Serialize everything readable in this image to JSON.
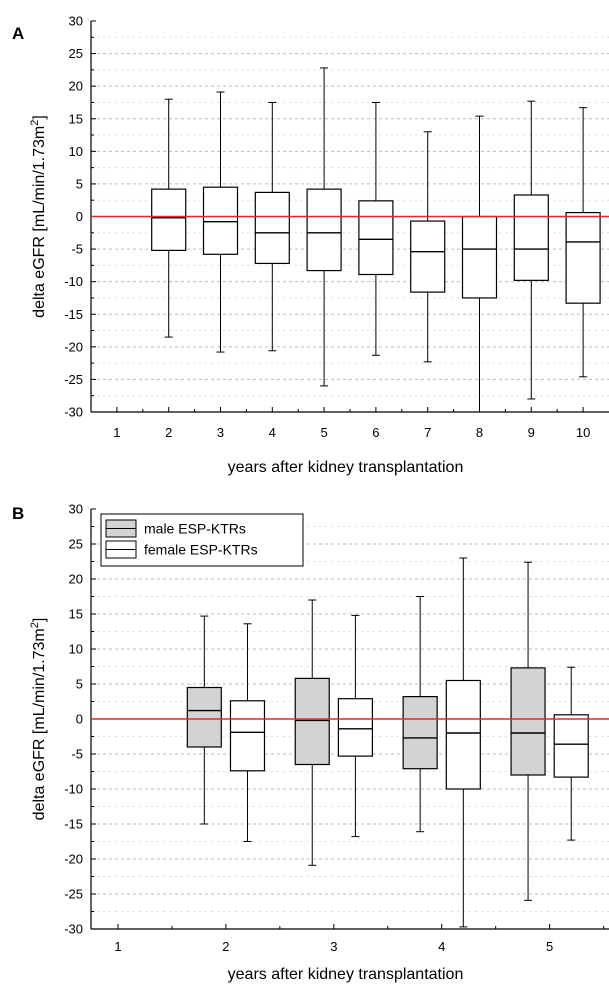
{
  "chart_data": [
    {
      "panel": "A",
      "type": "box",
      "xlabel": "years after kidney transplantation",
      "ylabel": "delta eGFR [mL/min/1.73m",
      "ylabel_sup": "2",
      "ylabel_close": "]",
      "ylim": [
        -30,
        30
      ],
      "xlim": [
        0.5,
        10.5
      ],
      "y_ticks": [
        -30,
        -25,
        -20,
        -15,
        -10,
        -5,
        0,
        5,
        10,
        15,
        20,
        25,
        30
      ],
      "x_ticks": [
        1,
        2,
        3,
        4,
        5,
        6,
        7,
        8,
        9,
        10
      ],
      "reference_line": {
        "y": 0,
        "color": "#e8262a"
      },
      "grid": "horizontal dashed",
      "boxes": [
        {
          "x": 2,
          "fill": "#ffffff",
          "whisker_low": -18.5,
          "q1": -5.2,
          "median": -0.2,
          "q3": 4.2,
          "whisker_high": 18.0
        },
        {
          "x": 3,
          "fill": "#ffffff",
          "whisker_low": -20.8,
          "q1": -5.8,
          "median": -0.8,
          "q3": 4.5,
          "whisker_high": 19.1
        },
        {
          "x": 4,
          "fill": "#ffffff",
          "whisker_low": -20.6,
          "q1": -7.2,
          "median": -2.5,
          "q3": 3.7,
          "whisker_high": 17.5
        },
        {
          "x": 5,
          "fill": "#ffffff",
          "whisker_low": -26.0,
          "q1": -8.3,
          "median": -2.5,
          "q3": 4.2,
          "whisker_high": 22.8
        },
        {
          "x": 6,
          "fill": "#ffffff",
          "whisker_low": -21.3,
          "q1": -8.9,
          "median": -3.5,
          "q3": 2.4,
          "whisker_high": 17.5
        },
        {
          "x": 7,
          "fill": "#ffffff",
          "whisker_low": -22.3,
          "q1": -11.6,
          "median": -5.4,
          "q3": -0.7,
          "whisker_high": 13.0
        },
        {
          "x": 8,
          "fill": "#ffffff",
          "whisker_low": -30.0,
          "q1": -12.5,
          "median": -5.0,
          "q3": 0.0,
          "whisker_high": 15.4
        },
        {
          "x": 9,
          "fill": "#ffffff",
          "whisker_low": -28.0,
          "q1": -9.8,
          "median": -5.0,
          "q3": 3.3,
          "whisker_high": 17.7
        },
        {
          "x": 10,
          "fill": "#ffffff",
          "whisker_low": -24.6,
          "q1": -13.3,
          "median": -3.9,
          "q3": 0.6,
          "whisker_high": 16.7
        }
      ]
    },
    {
      "panel": "B",
      "type": "box",
      "xlabel": "years after kidney transplantation",
      "ylabel": "delta eGFR [mL/min/1.73m",
      "ylabel_sup": "2",
      "ylabel_close": "]",
      "ylim": [
        -30,
        30
      ],
      "xlim": [
        0.75,
        5.55
      ],
      "y_ticks": [
        -30,
        -25,
        -20,
        -15,
        -10,
        -5,
        0,
        5,
        10,
        15,
        20,
        25,
        30
      ],
      "x_ticks": [
        1,
        2,
        3,
        4,
        5
      ],
      "reference_line": {
        "y": 0,
        "color": "#e8262a"
      },
      "grid": "horizontal dashed",
      "legend": {
        "position": "top-left",
        "items": [
          {
            "label": "male ESP-KTRs",
            "fill": "#d3d3d3"
          },
          {
            "label": "female ESP-KTRs",
            "fill": "#ffffff"
          }
        ]
      },
      "series": [
        {
          "name": "male ESP-KTRs",
          "fill": "#d3d3d3"
        },
        {
          "name": "female ESP-KTRs",
          "fill": "#ffffff"
        }
      ],
      "boxes": [
        {
          "x": 1.8,
          "series": "male ESP-KTRs",
          "whisker_low": -15.0,
          "q1": -4.0,
          "median": 1.2,
          "q3": 4.5,
          "whisker_high": 14.7
        },
        {
          "x": 2.2,
          "series": "female ESP-KTRs",
          "whisker_low": -17.5,
          "q1": -7.4,
          "median": -1.9,
          "q3": 2.6,
          "whisker_high": 13.6
        },
        {
          "x": 2.8,
          "series": "male ESP-KTRs",
          "whisker_low": -20.9,
          "q1": -6.5,
          "median": -0.2,
          "q3": 5.8,
          "whisker_high": 17.0
        },
        {
          "x": 3.2,
          "series": "female ESP-KTRs",
          "whisker_low": -16.8,
          "q1": -5.3,
          "median": -1.4,
          "q3": 2.9,
          "whisker_high": 14.8
        },
        {
          "x": 3.8,
          "series": "male ESP-KTRs",
          "whisker_low": -16.1,
          "q1": -7.1,
          "median": -2.7,
          "q3": 3.2,
          "whisker_high": 17.5
        },
        {
          "x": 4.2,
          "series": "female ESP-KTRs",
          "whisker_low": -29.7,
          "q1": -10.0,
          "median": -2.0,
          "q3": 5.5,
          "whisker_high": 23.0
        },
        {
          "x": 4.8,
          "series": "male ESP-KTRs",
          "whisker_low": -25.9,
          "q1": -8.0,
          "median": -2.0,
          "q3": 7.3,
          "whisker_high": 22.4
        },
        {
          "x": 5.2,
          "series": "female ESP-KTRs",
          "whisker_low": -17.3,
          "q1": -8.3,
          "median": -3.6,
          "q3": 0.6,
          "whisker_high": 7.4
        }
      ]
    }
  ]
}
